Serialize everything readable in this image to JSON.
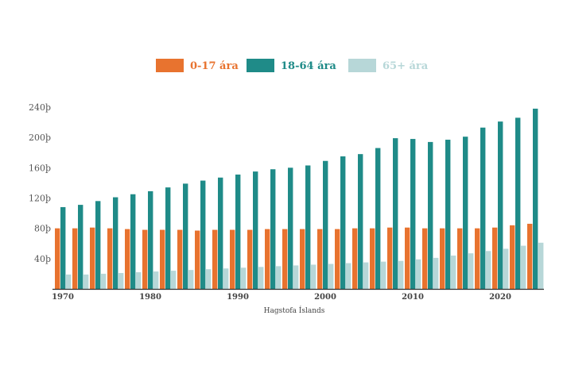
{
  "chart_data": {
    "type": "bar",
    "source": "Hagstofa Íslands",
    "x": [
      1970,
      1972,
      1974,
      1976,
      1978,
      1980,
      1982,
      1984,
      1986,
      1988,
      1990,
      1992,
      1994,
      1996,
      1998,
      2000,
      2002,
      2004,
      2006,
      2008,
      2010,
      2012,
      2014,
      2016,
      2018,
      2020,
      2022,
      2024
    ],
    "x_tick_labels": [
      "1970",
      "1980",
      "1990",
      "2000",
      "2010",
      "2020"
    ],
    "y_tick_labels": [
      "40þ",
      "80þ",
      "120þ",
      "160þ",
      "200þ",
      "240þ"
    ],
    "y_ticks": [
      40,
      80,
      120,
      160,
      200,
      240
    ],
    "ylim": [
      0,
      250
    ],
    "series": [
      {
        "name": "0-17 ára",
        "color": "#e8732f",
        "values": [
          80,
          80,
          81,
          80,
          79,
          78,
          78,
          78,
          77,
          78,
          78,
          78,
          79,
          79,
          79,
          79,
          79,
          80,
          80,
          81,
          81,
          80,
          80,
          80,
          80,
          81,
          84,
          86
        ]
      },
      {
        "name": "18-64 ára",
        "color": "#1f8b88",
        "values": [
          108,
          111,
          116,
          121,
          125,
          129,
          134,
          139,
          143,
          147,
          151,
          155,
          158,
          160,
          163,
          169,
          175,
          178,
          186,
          199,
          198,
          194,
          197,
          201,
          213,
          221,
          226,
          238
        ]
      },
      {
        "name": "65+ ára",
        "color": "#b7d7d8",
        "values": [
          19,
          19,
          20,
          21,
          22,
          23,
          24,
          25,
          26,
          27,
          28,
          29,
          30,
          31,
          32,
          33,
          34,
          35,
          36,
          37,
          39,
          41,
          44,
          47,
          50,
          53,
          57,
          61
        ]
      }
    ],
    "legend_position": "top-center",
    "grid": false
  }
}
